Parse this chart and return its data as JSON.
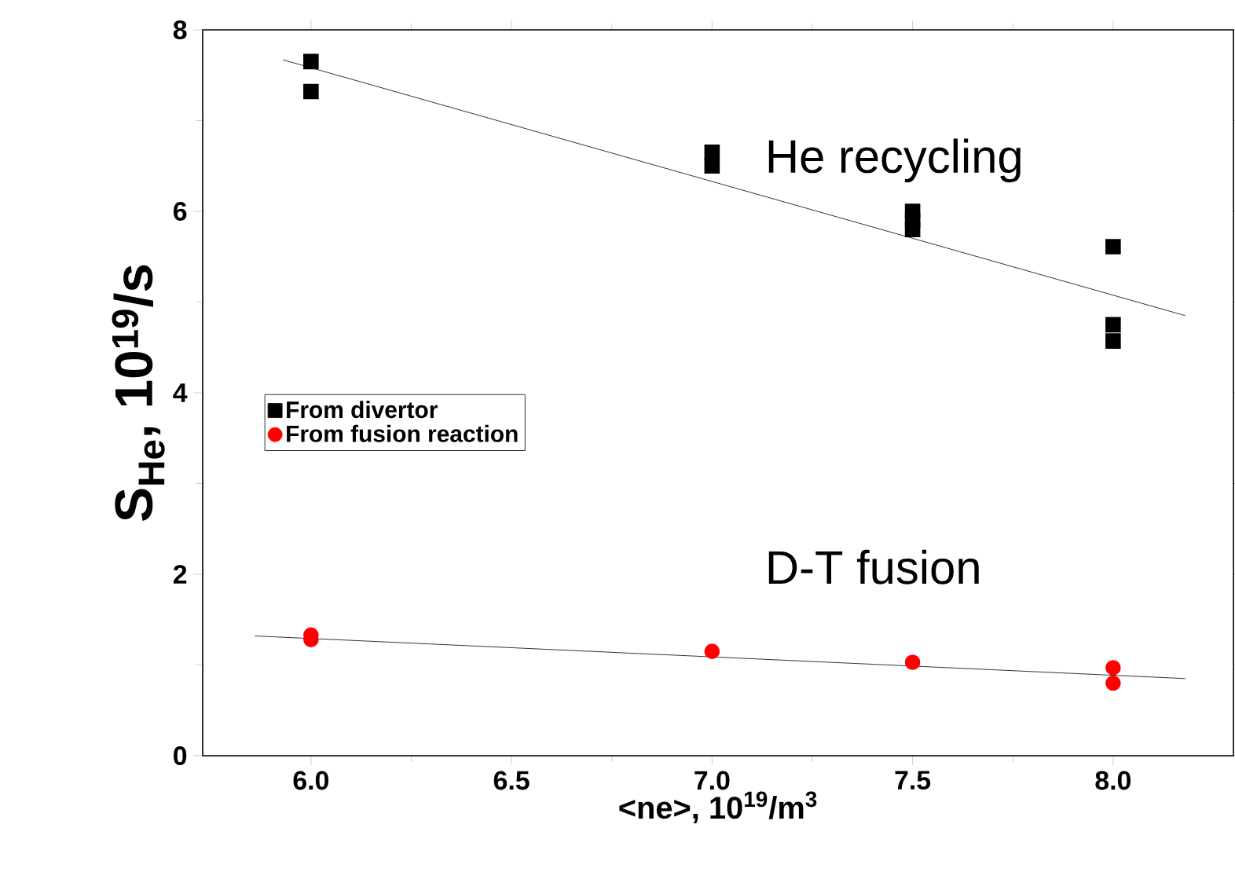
{
  "chart_data": {
    "type": "scatter",
    "xlabel": "<ne>, 10$^{19}$/m$^{3}$",
    "ylabel": "S$_{He}$, 10$^{19}$/s",
    "xlim": [
      5.73,
      8.3
    ],
    "ylim": [
      0,
      8
    ],
    "xticks": [
      {
        "value": 6.0,
        "label": "6.0"
      },
      {
        "value": 6.5,
        "label": "6.5"
      },
      {
        "value": 7.0,
        "label": "7.0"
      },
      {
        "value": 7.5,
        "label": "7.5"
      },
      {
        "value": 8.0,
        "label": "8.0"
      }
    ],
    "yticks": [
      0,
      2,
      4,
      6,
      8
    ],
    "legend": "left",
    "grid": false,
    "series": [
      {
        "name": "From divertor",
        "color": "#000000",
        "marker": "square",
        "x": [
          6.0,
          6.0,
          7.0,
          7.0,
          7.5,
          7.5,
          7.5,
          8.0,
          8.0,
          8.0
        ],
        "values": [
          7.65,
          7.32,
          6.65,
          6.5,
          6.0,
          5.9,
          5.8,
          5.61,
          4.75,
          4.57
        ]
      },
      {
        "name": "From fusion reaction",
        "color": "#ff0000",
        "marker": "circle",
        "x": [
          6.0,
          6.0,
          7.0,
          7.5,
          8.0,
          8.0
        ],
        "values": [
          1.33,
          1.28,
          1.15,
          1.03,
          0.97,
          0.8
        ]
      },
      {
        "type": "line",
        "color": "#000000",
        "marker": "none",
        "x": [
          5.93,
          8.18
        ],
        "values": [
          7.67,
          4.85
        ]
      },
      {
        "type": "line",
        "color": "#000000",
        "marker": "none",
        "x": [
          5.86,
          8.18
        ],
        "values": [
          1.32,
          0.85
        ]
      }
    ],
    "annotations": [
      "He recycling",
      "D-T fusion"
    ]
  }
}
